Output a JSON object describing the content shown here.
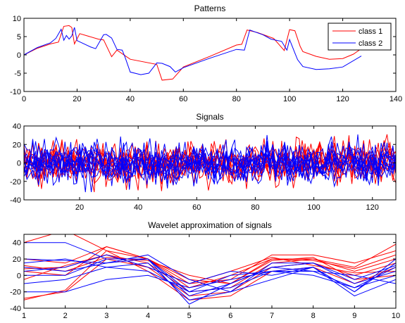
{
  "chart_data": [
    {
      "type": "line",
      "title": "Patterns",
      "xlim": [
        0,
        140
      ],
      "ylim": [
        -10,
        10
      ],
      "xticks": [
        0,
        20,
        40,
        60,
        80,
        100,
        120,
        140
      ],
      "yticks": [
        -10,
        -5,
        0,
        5,
        10
      ],
      "grid": false,
      "legend_position": "top-right",
      "series": [
        {
          "name": "class 1",
          "color": "#ff0000",
          "x": [
            0,
            5,
            10,
            13,
            15,
            17,
            18,
            19,
            21,
            28,
            30,
            33,
            35,
            40,
            50,
            52,
            56,
            60,
            70,
            80,
            82,
            84,
            88,
            94,
            98,
            100,
            102,
            104,
            105,
            110,
            115,
            120,
            124,
            128
          ],
          "y": [
            0,
            1.8,
            3,
            3.5,
            7.8,
            8,
            7.5,
            3,
            5.8,
            4.3,
            4.1,
            -0.5,
            1.3,
            -1.2,
            -2.6,
            -6.9,
            -6.6,
            -3.3,
            -0.4,
            2.7,
            2.9,
            6.8,
            6.1,
            4.5,
            1.2,
            6.9,
            6.6,
            2.3,
            0.9,
            -0.4,
            -1.2,
            -1.0,
            0.2,
            2.2
          ]
        },
        {
          "name": "class 2",
          "color": "#0000ff",
          "x": [
            0,
            5,
            10,
            12,
            14,
            15,
            16,
            17,
            18,
            19,
            20,
            25,
            27,
            30,
            31,
            33,
            35,
            37,
            38,
            40,
            44,
            47,
            50,
            52,
            55,
            57,
            60,
            70,
            80,
            83,
            85,
            90,
            93,
            97,
            99,
            100,
            102,
            103,
            105,
            110,
            115,
            120,
            127
          ],
          "y": [
            0,
            2,
            3.3,
            4.5,
            7,
            4,
            5.3,
            4.3,
            5.2,
            7.5,
            3.9,
            2.2,
            1.7,
            5.5,
            5.6,
            4.6,
            1.5,
            1.3,
            -0.5,
            -4.7,
            -5.4,
            -5,
            -2.2,
            -2.3,
            -3.2,
            -4.7,
            -3.5,
            -0.9,
            1.5,
            1.3,
            6.8,
            5.5,
            4.3,
            3.7,
            1.3,
            4.2,
            0.5,
            -1.3,
            -3.2,
            -4,
            -3.8,
            -3.3,
            -0.3
          ]
        }
      ]
    },
    {
      "type": "line",
      "title": "Signals",
      "xlim": [
        1,
        128
      ],
      "ylim": [
        -40,
        40
      ],
      "xticks": [
        20,
        40,
        60,
        80,
        100,
        120
      ],
      "yticks": [
        -40,
        -20,
        0,
        20,
        40
      ],
      "grid": false,
      "series": [
        {
          "class": "class 1",
          "color": "#ff0000",
          "seed": 11
        },
        {
          "class": "class 1",
          "color": "#ff0000",
          "seed": 12
        },
        {
          "class": "class 1",
          "color": "#ff0000",
          "seed": 13
        },
        {
          "class": "class 1",
          "color": "#ff0000",
          "seed": 14
        },
        {
          "class": "class 1",
          "color": "#ff0000",
          "seed": 15
        },
        {
          "class": "class 1",
          "color": "#ff0000",
          "seed": 16
        },
        {
          "class": "class 1",
          "color": "#ff0000",
          "seed": 17
        },
        {
          "class": "class 1",
          "color": "#ff0000",
          "seed": 18
        },
        {
          "class": "class 1",
          "color": "#ff0000",
          "seed": 19
        },
        {
          "class": "class 1",
          "color": "#ff0000",
          "seed": 20
        },
        {
          "class": "class 2",
          "color": "#0000ff",
          "seed": 31
        },
        {
          "class": "class 2",
          "color": "#0000ff",
          "seed": 32
        },
        {
          "class": "class 2",
          "color": "#0000ff",
          "seed": 33
        },
        {
          "class": "class 2",
          "color": "#0000ff",
          "seed": 34
        },
        {
          "class": "class 2",
          "color": "#0000ff",
          "seed": 35
        },
        {
          "class": "class 2",
          "color": "#0000ff",
          "seed": 36
        },
        {
          "class": "class 2",
          "color": "#0000ff",
          "seed": 37
        },
        {
          "class": "class 2",
          "color": "#0000ff",
          "seed": 38
        },
        {
          "class": "class 2",
          "color": "#0000ff",
          "seed": 39
        },
        {
          "class": "class 2",
          "color": "#0000ff",
          "seed": 40
        }
      ]
    },
    {
      "type": "line",
      "title": "Wavelet approximation of signals",
      "xlim": [
        1,
        10
      ],
      "ylim": [
        -40,
        50
      ],
      "xticks": [
        1,
        2,
        3,
        4,
        5,
        6,
        7,
        8,
        9,
        10
      ],
      "yticks": [
        -40,
        -20,
        0,
        20,
        40
      ],
      "grid": false,
      "x": [
        1,
        2,
        3,
        4,
        5,
        6,
        7,
        8,
        9,
        10
      ],
      "series": [
        {
          "class": "class 1",
          "color": "#ff0000",
          "values": [
            40,
            55,
            30,
            20,
            -5,
            -10,
            20,
            20,
            10,
            38
          ]
        },
        {
          "class": "class 1",
          "color": "#ff0000",
          "values": [
            20,
            15,
            35,
            20,
            -10,
            -5,
            25,
            25,
            15,
            30
          ]
        },
        {
          "class": "class 1",
          "color": "#ff0000",
          "values": [
            8,
            10,
            25,
            15,
            -20,
            -15,
            15,
            20,
            5,
            20
          ]
        },
        {
          "class": "class 1",
          "color": "#ff0000",
          "values": [
            -28,
            -20,
            20,
            10,
            -25,
            -20,
            10,
            15,
            0,
            15
          ]
        },
        {
          "class": "class 1",
          "color": "#ff0000",
          "values": [
            -30,
            -18,
            30,
            5,
            -30,
            -25,
            5,
            10,
            -10,
            10
          ]
        },
        {
          "class": "class 1",
          "color": "#ff0000",
          "values": [
            5,
            0,
            35,
            20,
            -15,
            0,
            20,
            18,
            8,
            25
          ]
        },
        {
          "class": "class 1",
          "color": "#ff0000",
          "values": [
            12,
            5,
            22,
            18,
            0,
            -10,
            18,
            22,
            -5,
            0
          ]
        },
        {
          "class": "class 1",
          "color": "#ff0000",
          "values": [
            -5,
            12,
            25,
            10,
            -10,
            5,
            22,
            12,
            3,
            5
          ]
        },
        {
          "class": "class 2",
          "color": "#0000ff",
          "values": [
            40,
            40,
            20,
            20,
            -20,
            0,
            5,
            10,
            -20,
            15
          ]
        },
        {
          "class": "class 2",
          "color": "#0000ff",
          "values": [
            20,
            18,
            15,
            20,
            -35,
            -10,
            10,
            5,
            -15,
            10
          ]
        },
        {
          "class": "class 2",
          "color": "#0000ff",
          "values": [
            15,
            20,
            10,
            15,
            -30,
            -20,
            15,
            15,
            -10,
            5
          ]
        },
        {
          "class": "class 2",
          "color": "#0000ff",
          "values": [
            5,
            10,
            25,
            10,
            -10,
            5,
            0,
            10,
            -25,
            -5
          ]
        },
        {
          "class": "class 2",
          "color": "#0000ff",
          "values": [
            -20,
            -20,
            -5,
            0,
            -15,
            -5,
            5,
            5,
            0,
            -10
          ]
        },
        {
          "class": "class 2",
          "color": "#0000ff",
          "values": [
            0,
            0,
            20,
            20,
            -25,
            -10,
            10,
            15,
            -5,
            12
          ]
        },
        {
          "class": "class 2",
          "color": "#0000ff",
          "values": [
            -10,
            -5,
            10,
            5,
            -20,
            -15,
            5,
            0,
            -15,
            0
          ]
        },
        {
          "class": "class 2",
          "color": "#0000ff",
          "values": [
            10,
            5,
            15,
            25,
            -5,
            -20,
            -5,
            10,
            -20,
            20
          ]
        }
      ]
    }
  ]
}
